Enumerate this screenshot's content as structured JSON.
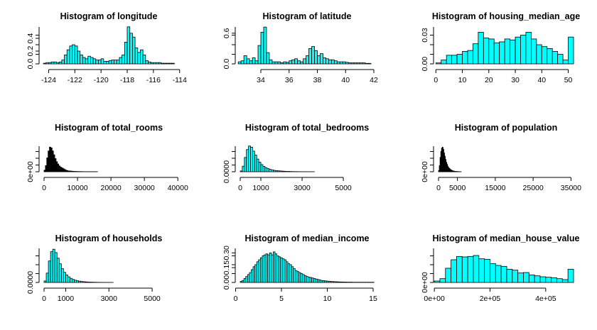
{
  "figure": {
    "bar_color": "#00FFFF",
    "dense_bar_color": "#000000"
  },
  "chart_data": [
    {
      "type": "bar",
      "title": "Histogram of  longitude",
      "xlim": [
        -124.35,
        -114.31
      ],
      "ylim": [
        0,
        0.6
      ],
      "x_ticks": [
        -124,
        -122,
        -120,
        -118,
        -116,
        -114
      ],
      "x_tick_labels": [
        "-124",
        "-122",
        "-120",
        "-118",
        "-116",
        "-114"
      ],
      "y_ticks": [
        0,
        0.2,
        0.4
      ],
      "y_tick_labels": [
        "0.0",
        "0.2",
        "0.4"
      ],
      "bin_start": -124.4,
      "bin_width": 0.2,
      "values": [
        0.01,
        0.02,
        0.02,
        0.03,
        0.03,
        0.02,
        0.03,
        0.06,
        0.14,
        0.22,
        0.28,
        0.3,
        0.28,
        0.2,
        0.14,
        0.1,
        0.08,
        0.12,
        0.1,
        0.08,
        0.06,
        0.06,
        0.08,
        0.04,
        0.04,
        0.05,
        0.06,
        0.06,
        0.06,
        0.1,
        0.14,
        0.34,
        0.58,
        0.48,
        0.42,
        0.25,
        0.18,
        0.22,
        0.14,
        0.05,
        0.03,
        0.02,
        0.02,
        0.02,
        0.02,
        0.01,
        0.01,
        0.01,
        0.01,
        0.01
      ],
      "dense": false
    },
    {
      "type": "bar",
      "title": "Histogram of  latitude",
      "xlim": [
        32.54,
        41.95
      ],
      "ylim": [
        0,
        0.75
      ],
      "x_ticks": [
        34,
        36,
        38,
        40,
        42
      ],
      "x_tick_labels": [
        "34",
        "36",
        "38",
        "40",
        "42"
      ],
      "y_ticks": [
        0,
        0.6
      ],
      "y_tick_labels": [
        "0.0",
        "0.6"
      ],
      "bin_start": 32.4,
      "bin_width": 0.2,
      "values": [
        0.04,
        0.06,
        0.16,
        0.1,
        0.06,
        0.12,
        0.06,
        0.36,
        0.62,
        0.72,
        0.22,
        0.08,
        0.04,
        0.04,
        0.04,
        0.02,
        0.04,
        0.03,
        0.06,
        0.08,
        0.1,
        0.06,
        0.04,
        0.1,
        0.16,
        0.3,
        0.34,
        0.26,
        0.16,
        0.2,
        0.12,
        0.1,
        0.08,
        0.08,
        0.06,
        0.04,
        0.04,
        0.04,
        0.03,
        0.02,
        0.02,
        0.02,
        0.02,
        0.02,
        0.02,
        0.01,
        0.01
      ],
      "dense": false
    },
    {
      "type": "bar",
      "title": "Histogram of  housing_median_age",
      "xlim": [
        1,
        52
      ],
      "ylim": [
        0,
        0.04
      ],
      "x_ticks": [
        0,
        10,
        20,
        30,
        40,
        50
      ],
      "x_tick_labels": [
        "0",
        "10",
        "20",
        "30",
        "40",
        "50"
      ],
      "y_ticks": [
        0,
        0.03
      ],
      "y_tick_labels": [
        "0.00",
        "0.03"
      ],
      "bin_start": 0,
      "bin_width": 2,
      "values": [
        0.001,
        0.004,
        0.009,
        0.009,
        0.01,
        0.013,
        0.014,
        0.021,
        0.033,
        0.027,
        0.026,
        0.022,
        0.023,
        0.026,
        0.025,
        0.028,
        0.03,
        0.033,
        0.026,
        0.02,
        0.018,
        0.016,
        0.013,
        0.01,
        0.004,
        0.028
      ],
      "dense": false
    },
    {
      "type": "bar",
      "title": "Histogram of  total_rooms",
      "xlim": [
        0,
        39320
      ],
      "ylim": [
        0,
        0.00035
      ],
      "x_ticks": [
        0,
        10000,
        20000,
        30000,
        40000
      ],
      "x_tick_labels": [
        "0",
        "10000",
        "20000",
        "30000",
        "40000"
      ],
      "y_ticks": [
        0
      ],
      "y_tick_labels": [
        "0e+00"
      ],
      "bin_start": 0,
      "bin_width": 400,
      "values": [
        2e-05,
        8e-05,
        0.00018,
        0.00027,
        0.00032,
        0.00031,
        0.00027,
        0.00022,
        0.00017,
        0.00013,
        0.0001,
        7.5e-05,
        6e-05,
        5e-05,
        4e-05,
        3e-05,
        2e-05,
        1.5e-05,
        1e-05,
        1e-05,
        8e-06,
        6e-06,
        5e-06,
        4e-06,
        3e-06,
        3e-06,
        2e-06,
        2e-06,
        2e-06,
        1e-06,
        1e-06,
        1e-06,
        1e-06,
        1e-06,
        1e-06,
        1e-06,
        1e-06,
        1e-06,
        1e-06,
        1e-06
      ],
      "dense": true
    },
    {
      "type": "bar",
      "title": "Histogram of  total_bedrooms",
      "xlim": [
        0,
        6445
      ],
      "ylim": [
        0,
        0.0017
      ],
      "x_ticks": [
        0,
        1000,
        3000,
        5000
      ],
      "x_tick_labels": [
        "0",
        "1000",
        "3000",
        "5000"
      ],
      "y_ticks": [
        0
      ],
      "y_tick_labels": [
        "0.0000"
      ],
      "bin_start": 0,
      "bin_width": 100,
      "values": [
        5e-05,
        0.00035,
        0.0009,
        0.0014,
        0.00162,
        0.00155,
        0.0013,
        0.00105,
        0.0008,
        0.0006,
        0.00045,
        0.00034,
        0.00026,
        0.0002,
        0.00015,
        0.00012,
        9e-05,
        7e-05,
        6e-05,
        5e-05,
        4e-05,
        3e-05,
        2e-05,
        2e-05,
        1.5e-05,
        1e-05,
        1e-05,
        8e-06,
        6e-06,
        5e-06,
        4e-06,
        4e-06,
        3e-06,
        3e-06,
        2e-06,
        2e-06
      ],
      "dense": false
    },
    {
      "type": "bar",
      "title": "Histogram of  population",
      "xlim": [
        0,
        35682
      ],
      "ylim": [
        0,
        0.00066
      ],
      "x_ticks": [
        0,
        5000,
        15000,
        25000,
        35000
      ],
      "x_tick_labels": [
        "0",
        "5000",
        "15000",
        "25000",
        "35000"
      ],
      "y_ticks": [
        0
      ],
      "y_tick_labels": [
        "0e+00"
      ],
      "bin_start": 0,
      "bin_width": 200,
      "values": [
        3e-05,
        0.00015,
        0.00035,
        0.0005,
        0.00058,
        0.0006,
        0.00055,
        0.00046,
        0.00038,
        0.0003,
        0.00023,
        0.00018,
        0.00013,
        0.0001,
        8e-05,
        6e-05,
        4.5e-05,
        3.5e-05,
        2.5e-05,
        2e-05,
        1.5e-05,
        1e-05,
        8e-06,
        6e-06,
        5e-06,
        4e-06,
        3e-06,
        2e-06,
        2e-06,
        2e-06
      ],
      "dense": true
    },
    {
      "type": "bar",
      "title": "Histogram of  households",
      "xlim": [
        0,
        6082
      ],
      "ylim": [
        0,
        0.0019
      ],
      "x_ticks": [
        0,
        1000,
        3000,
        5000
      ],
      "x_tick_labels": [
        "0",
        "1000",
        "3000",
        "5000"
      ],
      "y_ticks": [
        0
      ],
      "y_tick_labels": [
        "0.0000"
      ],
      "bin_start": 0,
      "bin_width": 100,
      "values": [
        8e-05,
        0.0005,
        0.00115,
        0.00165,
        0.00178,
        0.0016,
        0.0013,
        0.001,
        0.00074,
        0.00054,
        0.0004,
        0.0003,
        0.00022,
        0.00016,
        0.00012,
        9e-05,
        7e-05,
        5e-05,
        4e-05,
        3e-05,
        2e-05,
        1.8e-05,
        1.4e-05,
        1e-05,
        8e-06,
        6e-06,
        5e-06,
        4e-06,
        3e-06,
        3e-06,
        2e-06,
        2e-06
      ],
      "dense": false
    },
    {
      "type": "bar",
      "title": "Histogram of  median_income",
      "xlim": [
        0.5,
        15
      ],
      "ylim": [
        0,
        0.36
      ],
      "x_ticks": [
        0,
        5,
        10,
        15
      ],
      "x_tick_labels": [
        "0",
        "5",
        "10",
        "15"
      ],
      "y_ticks": [
        0,
        0.15,
        0.3
      ],
      "y_tick_labels": [
        "0.00",
        "0.15",
        "0.30"
      ],
      "bin_start": 0.5,
      "bin_width": 0.2,
      "values": [
        0.01,
        0.02,
        0.04,
        0.06,
        0.08,
        0.1,
        0.13,
        0.16,
        0.18,
        0.21,
        0.23,
        0.25,
        0.27,
        0.28,
        0.29,
        0.28,
        0.3,
        0.28,
        0.31,
        0.29,
        0.27,
        0.26,
        0.25,
        0.24,
        0.23,
        0.21,
        0.19,
        0.18,
        0.16,
        0.14,
        0.12,
        0.11,
        0.1,
        0.09,
        0.08,
        0.07,
        0.06,
        0.055,
        0.05,
        0.045,
        0.04,
        0.035,
        0.03,
        0.025,
        0.02,
        0.018,
        0.016,
        0.014,
        0.012,
        0.01,
        0.009,
        0.008,
        0.007,
        0.006,
        0.005,
        0.005,
        0.004,
        0.004,
        0.003,
        0.003,
        0.003,
        0.002,
        0.002,
        0.002,
        0.002,
        0.002,
        0.002,
        0.002,
        0.002,
        0.002,
        0.002,
        0.002,
        0.002
      ],
      "dense": false
    },
    {
      "type": "bar",
      "title": "Histogram of  median_house_value",
      "xlim": [
        15000,
        500001
      ],
      "ylim": [
        0,
        7.5e-06
      ],
      "x_ticks": [
        0,
        200000,
        400000
      ],
      "x_tick_labels": [
        "0e+00",
        "2e+05",
        "4e+05"
      ],
      "y_ticks": [
        0
      ],
      "y_tick_labels": [
        "0e+00"
      ],
      "bin_start": 0,
      "bin_width": 20000,
      "values": [
        3e-07,
        8e-07,
        3e-06,
        4.8e-06,
        5.5e-06,
        5.4e-06,
        5.5e-06,
        5.7e-06,
        5e-06,
        4.9e-06,
        4e-06,
        3.6e-06,
        3.4e-06,
        2.8e-06,
        2.6e-06,
        2e-06,
        2.1e-06,
        1.6e-06,
        1.4e-06,
        1.2e-06,
        1.1e-06,
        1e-06,
        8e-07,
        6e-07,
        2.8e-06
      ],
      "dense": false
    }
  ]
}
